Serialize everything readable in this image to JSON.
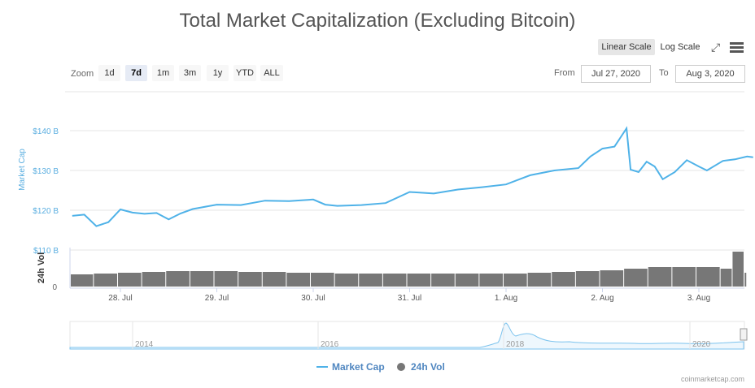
{
  "title": "Total Market Capitalization (Excluding Bitcoin)",
  "scale_buttons": {
    "linear": "Linear Scale",
    "log": "Log Scale",
    "selected": "linear"
  },
  "icons": {
    "fullscreen": "expand-icon",
    "menu": "hamburger-menu-icon"
  },
  "zoom": {
    "label": "Zoom",
    "options": [
      "1d",
      "7d",
      "1m",
      "3m",
      "1y",
      "YTD",
      "ALL"
    ],
    "selected": "7d"
  },
  "range": {
    "from_label": "From",
    "from": "Jul 27, 2020",
    "to_label": "To",
    "to": "Aug 3, 2020"
  },
  "colors": {
    "market_cap": "#4fb2e8",
    "volume": "#777777",
    "axis_label": "#5aaee0"
  },
  "chart_data": {
    "type": "line",
    "y_axis": {
      "title": "Market Cap",
      "ticks": [
        "$110 B",
        "$120 B",
        "$130 B",
        "$140 B"
      ],
      "ylim": [
        110,
        145
      ],
      "unit": "B USD"
    },
    "volume_axis": {
      "title": "24h Vol",
      "ticks": [
        "0"
      ]
    },
    "x_ticks": [
      "28. Jul",
      "29. Jul",
      "30. Jul",
      "31. Jul",
      "1. Aug",
      "2. Aug",
      "3. Aug"
    ],
    "grid": true,
    "series": [
      {
        "name": "Market Cap",
        "type": "line",
        "points": [
          [
            "2020-07-27T12:00",
            118.6
          ],
          [
            "2020-07-27T15:00",
            118.9
          ],
          [
            "2020-07-27T18:00",
            116.0
          ],
          [
            "2020-07-27T21:00",
            117.0
          ],
          [
            "2020-07-28T00:00",
            120.2
          ],
          [
            "2020-07-28T03:00",
            119.4
          ],
          [
            "2020-07-28T06:00",
            119.1
          ],
          [
            "2020-07-28T09:00",
            119.3
          ],
          [
            "2020-07-28T12:00",
            117.7
          ],
          [
            "2020-07-28T15:00",
            119.2
          ],
          [
            "2020-07-28T18:00",
            120.3
          ],
          [
            "2020-07-29T00:00",
            121.4
          ],
          [
            "2020-07-29T06:00",
            121.3
          ],
          [
            "2020-07-29T12:00",
            122.4
          ],
          [
            "2020-07-29T18:00",
            122.3
          ],
          [
            "2020-07-30T00:00",
            122.7
          ],
          [
            "2020-07-30T03:00",
            121.4
          ],
          [
            "2020-07-30T06:00",
            121.1
          ],
          [
            "2020-07-30T12:00",
            121.3
          ],
          [
            "2020-07-30T18:00",
            121.8
          ],
          [
            "2020-07-31T00:00",
            124.6
          ],
          [
            "2020-07-31T06:00",
            124.2
          ],
          [
            "2020-07-31T12:00",
            125.2
          ],
          [
            "2020-07-31T18:00",
            125.8
          ],
          [
            "2020-08-01T00:00",
            126.5
          ],
          [
            "2020-08-01T06:00",
            128.8
          ],
          [
            "2020-08-01T12:00",
            130.0
          ],
          [
            "2020-08-01T18:00",
            130.6
          ],
          [
            "2020-08-01T21:00",
            133.5
          ],
          [
            "2020-08-02T00:00",
            135.5
          ],
          [
            "2020-08-02T03:00",
            136.0
          ],
          [
            "2020-08-02T06:00",
            140.6
          ],
          [
            "2020-08-02T07:00",
            130.2
          ],
          [
            "2020-08-02T09:00",
            129.6
          ],
          [
            "2020-08-02T11:00",
            132.2
          ],
          [
            "2020-08-02T13:00",
            131.0
          ],
          [
            "2020-08-02T15:00",
            127.8
          ],
          [
            "2020-08-02T18:00",
            129.6
          ],
          [
            "2020-08-02T21:00",
            132.6
          ],
          [
            "2020-08-03T00:00",
            131.0
          ],
          [
            "2020-08-03T02:00",
            130.0
          ],
          [
            "2020-08-03T06:00",
            132.4
          ],
          [
            "2020-08-03T09:00",
            132.8
          ],
          [
            "2020-08-03T12:00",
            133.5
          ],
          [
            "2020-08-03T13:30",
            133.3
          ]
        ]
      },
      {
        "name": "24h Vol",
        "type": "column",
        "points": [
          [
            "2020-07-27T12:00",
            15
          ],
          [
            "2020-07-27T18:00",
            16
          ],
          [
            "2020-07-28T00:00",
            17
          ],
          [
            "2020-07-28T06:00",
            18
          ],
          [
            "2020-07-28T12:00",
            19
          ],
          [
            "2020-07-28T18:00",
            19
          ],
          [
            "2020-07-29T00:00",
            19
          ],
          [
            "2020-07-29T06:00",
            18
          ],
          [
            "2020-07-29T12:00",
            18
          ],
          [
            "2020-07-29T18:00",
            17
          ],
          [
            "2020-07-30T00:00",
            17
          ],
          [
            "2020-07-30T06:00",
            16
          ],
          [
            "2020-07-30T12:00",
            16
          ],
          [
            "2020-07-30T18:00",
            16
          ],
          [
            "2020-07-31T00:00",
            16
          ],
          [
            "2020-07-31T06:00",
            16
          ],
          [
            "2020-07-31T12:00",
            16
          ],
          [
            "2020-07-31T18:00",
            16
          ],
          [
            "2020-08-01T00:00",
            16
          ],
          [
            "2020-08-01T06:00",
            17
          ],
          [
            "2020-08-01T12:00",
            18
          ],
          [
            "2020-08-01T18:00",
            19
          ],
          [
            "2020-08-02T00:00",
            20
          ],
          [
            "2020-08-02T06:00",
            22
          ],
          [
            "2020-08-02T12:00",
            24
          ],
          [
            "2020-08-02T18:00",
            24
          ],
          [
            "2020-08-03T00:00",
            24
          ],
          [
            "2020-08-03T06:00",
            22
          ],
          [
            "2020-08-03T09:00",
            43
          ],
          [
            "2020-08-03T12:00",
            17
          ]
        ]
      }
    ],
    "navigator": {
      "ticks": [
        "2014",
        "2016",
        "2018",
        "2020"
      ]
    },
    "legend": [
      "Market Cap",
      "24h Vol"
    ],
    "legend_position": "bottom",
    "credit": "coinmarketcap.com"
  }
}
